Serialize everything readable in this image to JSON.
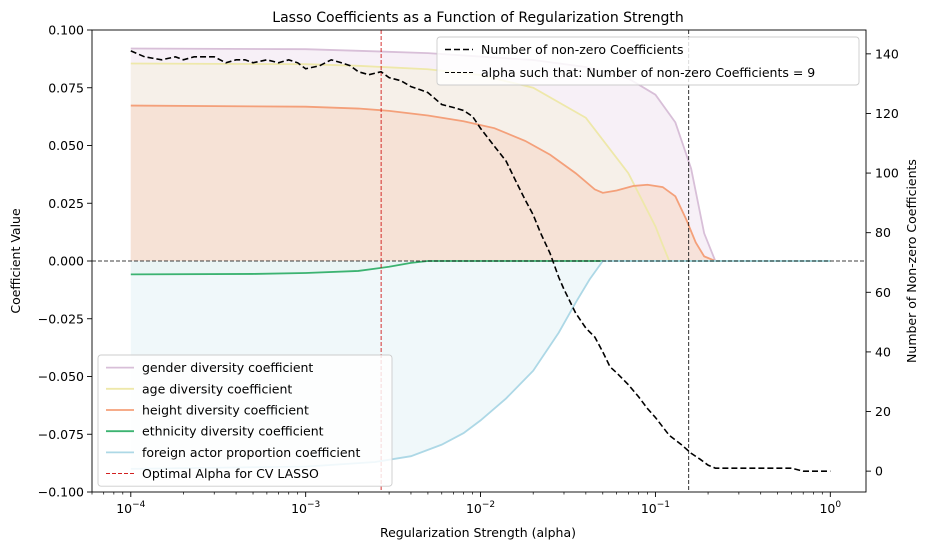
{
  "chart_data": {
    "type": "line",
    "title": "Lasso Coefficients as a Function of Regularization Strength",
    "xlabel": "Regularization Strength (alpha)",
    "ylabel": "Coefficient Value",
    "y2label": "Number of Non-zero Coefficients",
    "xscale": "log",
    "xlim": [
      6e-05,
      1.6
    ],
    "ylim": [
      -0.1,
      0.1
    ],
    "y2lim": [
      -7,
      148
    ],
    "x_ticks": [
      {
        "v": 0.0001,
        "base": "10",
        "exp": "−4"
      },
      {
        "v": 0.001,
        "base": "10",
        "exp": "−3"
      },
      {
        "v": 0.01,
        "base": "10",
        "exp": "−2"
      },
      {
        "v": 0.1,
        "base": "10",
        "exp": "−1"
      },
      {
        "v": 1,
        "base": "10",
        "exp": "0"
      }
    ],
    "y_ticks": [
      "0.100",
      "0.075",
      "0.050",
      "0.025",
      "0.000",
      "−0.025",
      "−0.050",
      "−0.075",
      "−0.100"
    ],
    "y_tick_values": [
      0.1,
      0.075,
      0.05,
      0.025,
      0,
      -0.025,
      -0.05,
      -0.075,
      -0.1
    ],
    "y2_ticks": [
      0,
      20,
      40,
      60,
      80,
      100,
      120,
      140
    ],
    "series": [
      {
        "name": "gender diversity coefficient",
        "color": "#d8bfd8",
        "fill": "#f3eaf3",
        "x": [
          0.0001,
          0.001,
          0.002,
          0.005,
          0.01,
          0.02,
          0.04,
          0.07,
          0.1,
          0.13,
          0.16,
          0.19,
          0.22,
          0.5,
          1
        ],
        "y": [
          0.092,
          0.0917,
          0.091,
          0.09,
          0.0885,
          0.087,
          0.084,
          0.079,
          0.072,
          0.06,
          0.04,
          0.012,
          0,
          0,
          0
        ]
      },
      {
        "name": "age diversity coefficient",
        "color": "#eee8aa",
        "fill": "#f5efe2",
        "x": [
          0.0001,
          0.001,
          0.002,
          0.005,
          0.01,
          0.02,
          0.04,
          0.07,
          0.1,
          0.11,
          0.12,
          0.5,
          1
        ],
        "y": [
          0.0855,
          0.0852,
          0.0845,
          0.083,
          0.0805,
          0.075,
          0.062,
          0.038,
          0.015,
          0.007,
          0,
          0,
          0
        ]
      },
      {
        "name": "height diversity coefficient",
        "color": "#f4a07a",
        "fill": "#f7dccd",
        "x": [
          0.0001,
          0.001,
          0.002,
          0.003,
          0.005,
          0.008,
          0.012,
          0.018,
          0.025,
          0.035,
          0.045,
          0.05,
          0.06,
          0.075,
          0.09,
          0.11,
          0.13,
          0.15,
          0.17,
          0.19,
          0.22,
          0.5,
          1
        ],
        "y": [
          0.0673,
          0.0668,
          0.066,
          0.065,
          0.063,
          0.0605,
          0.0575,
          0.052,
          0.046,
          0.038,
          0.031,
          0.0295,
          0.0305,
          0.0325,
          0.033,
          0.032,
          0.028,
          0.018,
          0.008,
          0.002,
          0,
          0,
          0
        ]
      },
      {
        "name": "ethnicity diversity coefficient",
        "color": "#3cb371",
        "fill": "#e2f0e6",
        "x": [
          0.0001,
          0.0005,
          0.001,
          0.002,
          0.003,
          0.004,
          0.005,
          0.01,
          0.1,
          1
        ],
        "y": [
          -0.0058,
          -0.0056,
          -0.0052,
          -0.0043,
          -0.0025,
          -0.0008,
          0,
          0,
          0,
          0
        ]
      },
      {
        "name": "foreign actor proportion coefficient",
        "color": "#add8e6",
        "fill": "#eaf5f8",
        "x": [
          0.0001,
          0.001,
          0.0025,
          0.004,
          0.006,
          0.008,
          0.01,
          0.014,
          0.02,
          0.028,
          0.035,
          0.042,
          0.05,
          0.1,
          1
        ],
        "y": [
          -0.09,
          -0.089,
          -0.087,
          -0.0845,
          -0.0795,
          -0.0745,
          -0.069,
          -0.0595,
          -0.0475,
          -0.031,
          -0.018,
          -0.008,
          0,
          0,
          0
        ]
      },
      {
        "name": "Number of non-zero Coefficients",
        "axis": "right",
        "color": "#000000",
        "dash": "6,3",
        "x": [
          0.0001,
          0.00012,
          0.00015,
          0.00018,
          0.0002,
          0.00023,
          0.00027,
          0.0003,
          0.00035,
          0.0004,
          0.00045,
          0.0005,
          0.0006,
          0.0007,
          0.0008,
          0.0009,
          0.001,
          0.0012,
          0.0014,
          0.0016,
          0.0018,
          0.002,
          0.0023,
          0.0027,
          0.003,
          0.0035,
          0.004,
          0.0045,
          0.005,
          0.006,
          0.007,
          0.008,
          0.009,
          0.01,
          0.012,
          0.014,
          0.016,
          0.018,
          0.02,
          0.022,
          0.025,
          0.028,
          0.03,
          0.035,
          0.04,
          0.045,
          0.05,
          0.055,
          0.06,
          0.07,
          0.08,
          0.09,
          0.1,
          0.12,
          0.14,
          0.16,
          0.18,
          0.2,
          0.22,
          0.3,
          0.5,
          0.6,
          0.7,
          0.8,
          1.0
        ],
        "y": [
          141,
          139,
          138,
          139,
          138,
          139,
          139,
          139,
          137,
          138,
          138,
          137,
          138,
          137,
          138,
          137,
          135,
          136,
          138,
          137,
          136,
          134,
          133,
          134,
          132,
          131,
          129,
          128,
          127,
          123,
          122,
          121,
          119,
          115,
          109,
          104,
          97,
          91,
          86,
          80,
          73,
          65,
          61,
          53,
          48,
          45,
          40,
          35,
          33,
          29,
          25,
          21,
          18,
          12,
          9,
          6,
          4,
          2,
          1,
          1,
          1,
          1,
          0,
          0,
          0
        ]
      }
    ],
    "vlines": [
      {
        "name": "Optimal Alpha for CV LASSO",
        "x": 0.0027,
        "color": "#cc0000",
        "dash": "4,2"
      },
      {
        "name": "alpha such that: Number of non-zero Coefficients = 9",
        "x": 0.155,
        "color": "#000000",
        "dash": "4,2"
      }
    ],
    "hline": {
      "y": 0,
      "color": "#000000",
      "dash": "4,2"
    },
    "legend_left": {
      "placement": "lower-left",
      "entries": [
        {
          "label": "gender diversity coefficient",
          "color": "#d8bfd8",
          "style": "solid"
        },
        {
          "label": "age diversity coefficient",
          "color": "#eee8aa",
          "style": "solid"
        },
        {
          "label": "height diversity coefficient",
          "color": "#f4a07a",
          "style": "solid"
        },
        {
          "label": "ethnicity diversity coefficient",
          "color": "#3cb371",
          "style": "solid"
        },
        {
          "label": "foreign actor proportion coefficient",
          "color": "#add8e6",
          "style": "solid"
        },
        {
          "label": "Optimal Alpha for CV LASSO",
          "color": "#cc0000",
          "style": "dashed-thin"
        }
      ]
    },
    "legend_right": {
      "placement": "upper-right",
      "entries": [
        {
          "label": "Number of non-zero Coefficients",
          "color": "#000000",
          "style": "dashed"
        },
        {
          "label": "alpha such that: Number of non-zero Coefficients = 9",
          "color": "#000000",
          "style": "dashed-thin"
        }
      ]
    },
    "grid": false
  }
}
